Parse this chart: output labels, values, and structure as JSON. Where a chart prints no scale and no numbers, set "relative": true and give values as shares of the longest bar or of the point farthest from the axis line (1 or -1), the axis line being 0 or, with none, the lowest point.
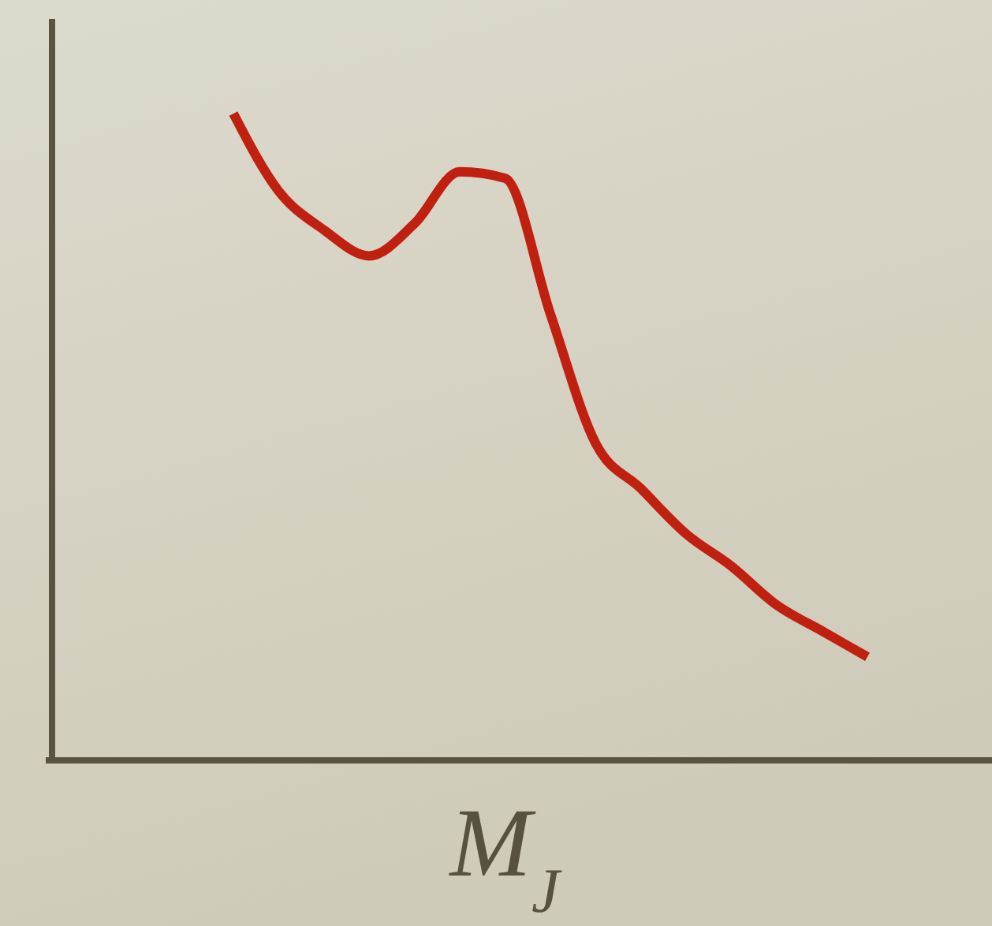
{
  "chart_data": {
    "type": "line",
    "relative": true,
    "xlabel": "M$_{J}$",
    "color": "#c0200f",
    "categories": [
      null,
      null,
      null,
      null,
      null,
      null,
      null,
      null,
      null,
      null,
      null,
      null,
      null,
      null,
      null
    ],
    "values": [
      1,
      0.88,
      0.82,
      0.78,
      0.83,
      0.91,
      0.9,
      0.69,
      0.49,
      0.42,
      0.35,
      0.3,
      0.24,
      0.2,
      0.16
    ]
  }
}
